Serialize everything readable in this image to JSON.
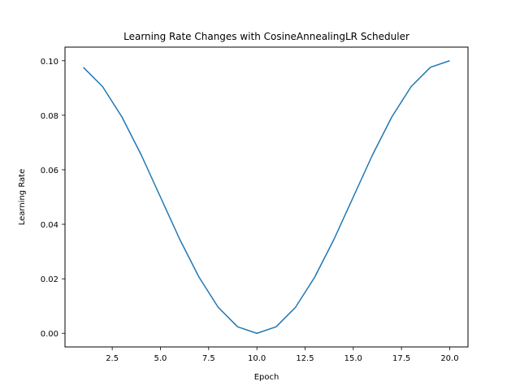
{
  "chart_data": {
    "type": "line",
    "title": "Learning Rate Changes with CosineAnnealingLR Scheduler",
    "xlabel": "Epoch",
    "ylabel": "Learning Rate",
    "xlim": [
      0.05,
      20.95
    ],
    "ylim": [
      -0.005,
      0.105
    ],
    "xticks": [
      "2.5",
      "5.0",
      "7.5",
      "10.0",
      "12.5",
      "15.0",
      "17.5",
      "20.0"
    ],
    "yticks": [
      "0.00",
      "0.02",
      "0.04",
      "0.06",
      "0.08",
      "0.10"
    ],
    "grid": false,
    "series": [
      {
        "color": "#1f77b4",
        "x": [
          1,
          2,
          3,
          4,
          5,
          6,
          7,
          8,
          9,
          10,
          11,
          12,
          13,
          14,
          15,
          16,
          17,
          18,
          19,
          20
        ],
        "y": [
          0.0976,
          0.0905,
          0.0794,
          0.0655,
          0.05,
          0.0345,
          0.0206,
          0.0095,
          0.0024,
          0.0,
          0.0024,
          0.0095,
          0.0206,
          0.0345,
          0.05,
          0.0655,
          0.0794,
          0.0905,
          0.0976,
          0.1
        ]
      }
    ]
  }
}
